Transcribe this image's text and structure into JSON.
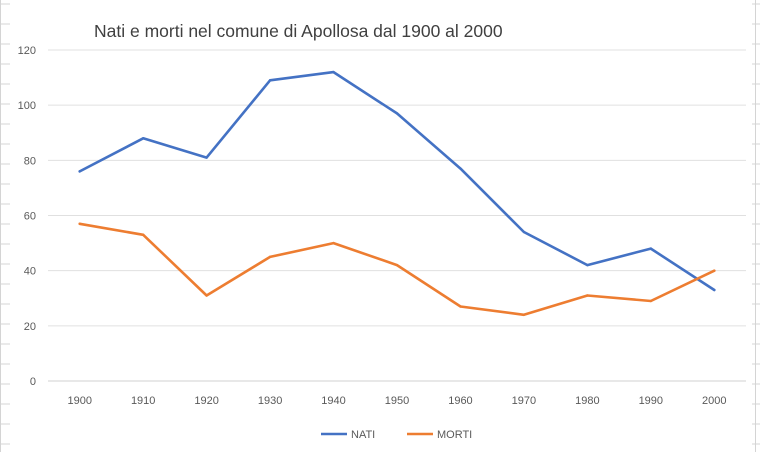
{
  "chart_data": {
    "type": "line",
    "title": "Nati e morti nel comune di Apollosa dal 1900 al 2000",
    "xlabel": "",
    "ylabel": "",
    "categories": [
      "1900",
      "1910",
      "1920",
      "1930",
      "1940",
      "1950",
      "1960",
      "1970",
      "1980",
      "1990",
      "2000"
    ],
    "ylim": [
      0,
      120
    ],
    "yticks": [
      "0",
      "20",
      "40",
      "60",
      "80",
      "100",
      "120"
    ],
    "grid": true,
    "legend_position": "bottom",
    "series": [
      {
        "name": "NATI",
        "color": "#4472C4",
        "values": [
          76,
          88,
          81,
          109,
          112,
          97,
          77,
          54,
          42,
          48,
          33
        ]
      },
      {
        "name": "MORTI",
        "color": "#ED7D31",
        "values": [
          57,
          53,
          31,
          45,
          50,
          42,
          27,
          24,
          31,
          29,
          40
        ]
      }
    ]
  }
}
